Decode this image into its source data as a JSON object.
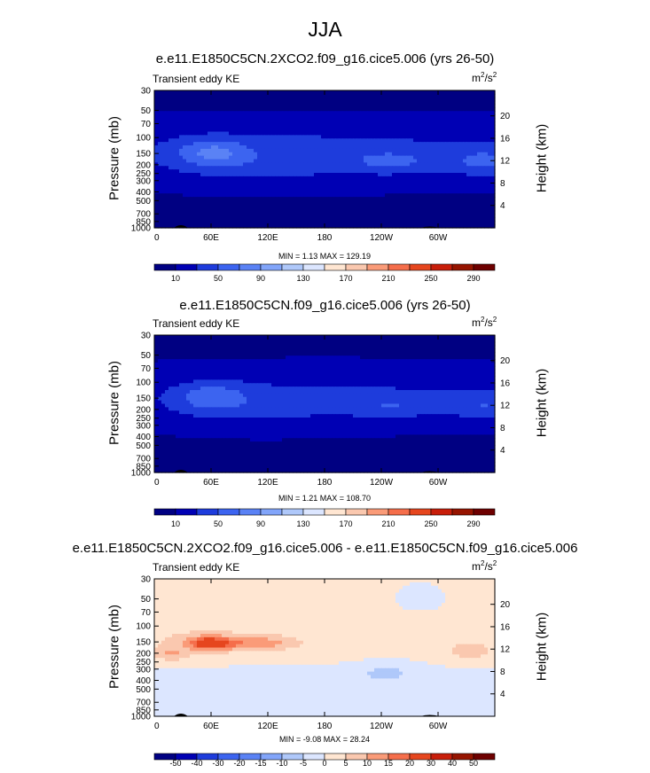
{
  "figure": {
    "title": "JJA"
  },
  "units_base": "m",
  "units_sub": "/s",
  "units_exp": "2",
  "chart_data": [
    {
      "type": "heatmap",
      "title": "e.e11.E1850C5CN.2XCO2.f09_g16.cice5.006 (yrs 26-50)",
      "variable": "Transient eddy KE",
      "units": "m2/s2",
      "xlabel": "",
      "ylabel": "Pressure (mb)",
      "ylabel_right": "Height (km)",
      "x_ticks": [
        "0",
        "60E",
        "120E",
        "180",
        "120W",
        "60W"
      ],
      "y_ticks": [
        "30",
        "50",
        "70",
        "100",
        "150",
        "200",
        "250",
        "300",
        "400",
        "500",
        "700",
        "850",
        "1000"
      ],
      "y_right_ticks": [
        "4",
        "8",
        "12",
        "16",
        "20"
      ],
      "stats": {
        "min": "1.13",
        "max": "129.19"
      },
      "stats_text": "MIN =   1.13  MAX = 129.19",
      "colorbar_labels": [
        "10",
        "50",
        "90",
        "130",
        "170",
        "210",
        "250",
        "290"
      ],
      "levels": [
        10,
        30,
        50,
        70,
        90,
        110,
        130,
        150,
        170,
        190,
        210,
        230,
        250,
        270,
        290
      ],
      "colors": [
        "#000082",
        "#0000b4",
        "#1e3cdc",
        "#3c64f0",
        "#5a82f5",
        "#82a5fa",
        "#afc8fa",
        "#dce6ff",
        "#ffe6d2",
        "#fac8af",
        "#fa9b78",
        "#f56e4b",
        "#e6461e",
        "#c81e0a",
        "#961400",
        "#6e0000"
      ]
    },
    {
      "type": "heatmap",
      "title": "e.e11.E1850C5CN.f09_g16.cice5.006 (yrs 26-50)",
      "variable": "Transient eddy KE",
      "units": "m2/s2",
      "xlabel": "",
      "ylabel": "Pressure (mb)",
      "ylabel_right": "Height (km)",
      "x_ticks": [
        "0",
        "60E",
        "120E",
        "180",
        "120W",
        "60W"
      ],
      "y_ticks": [
        "30",
        "50",
        "70",
        "100",
        "150",
        "200",
        "250",
        "300",
        "400",
        "500",
        "700",
        "850",
        "1000"
      ],
      "y_right_ticks": [
        "4",
        "8",
        "12",
        "16",
        "20"
      ],
      "stats": {
        "min": "1.21",
        "max": "108.70"
      },
      "stats_text": "MIN =   1.21  MAX = 108.70",
      "colorbar_labels": [
        "10",
        "50",
        "90",
        "130",
        "170",
        "210",
        "250",
        "290"
      ],
      "levels": [
        10,
        30,
        50,
        70,
        90,
        110,
        130,
        150,
        170,
        190,
        210,
        230,
        250,
        270,
        290
      ],
      "colors": [
        "#000082",
        "#0000b4",
        "#1e3cdc",
        "#3c64f0",
        "#5a82f5",
        "#82a5fa",
        "#afc8fa",
        "#dce6ff",
        "#ffe6d2",
        "#fac8af",
        "#fa9b78",
        "#f56e4b",
        "#e6461e",
        "#c81e0a",
        "#961400",
        "#6e0000"
      ]
    },
    {
      "type": "heatmap",
      "title": "e.e11.E1850C5CN.2XCO2.f09_g16.cice5.006 - e.e11.E1850C5CN.f09_g16.cice5.006",
      "variable": "Transient eddy KE",
      "units": "m2/s2",
      "xlabel": "",
      "ylabel": "Pressure (mb)",
      "ylabel_right": "Height (km)",
      "x_ticks": [
        "0",
        "60E",
        "120E",
        "180",
        "120W",
        "60W"
      ],
      "y_ticks": [
        "30",
        "50",
        "70",
        "100",
        "150",
        "200",
        "250",
        "300",
        "400",
        "500",
        "700",
        "850",
        "1000"
      ],
      "y_right_ticks": [
        "4",
        "8",
        "12",
        "16",
        "20"
      ],
      "stats": {
        "min": "-9.08",
        "max": "28.24"
      },
      "stats_text": "MIN =  -9.08  MAX =  28.24",
      "colorbar_labels": [
        "-50",
        "-40",
        "-30",
        "-20",
        "-15",
        "-10",
        "-5",
        "0",
        "5",
        "10",
        "15",
        "20",
        "30",
        "40",
        "50"
      ],
      "levels": [
        -50,
        -40,
        -30,
        -20,
        -15,
        -10,
        -5,
        0,
        5,
        10,
        15,
        20,
        30,
        40,
        50
      ],
      "colors": [
        "#000082",
        "#0000b4",
        "#1e3cdc",
        "#3c64f0",
        "#5a82f5",
        "#82a5fa",
        "#afc8fa",
        "#dce6ff",
        "#ffe6d2",
        "#fac8af",
        "#fa9b78",
        "#f56e4b",
        "#e6461e",
        "#c81e0a",
        "#961400",
        "#6e0000"
      ]
    }
  ]
}
